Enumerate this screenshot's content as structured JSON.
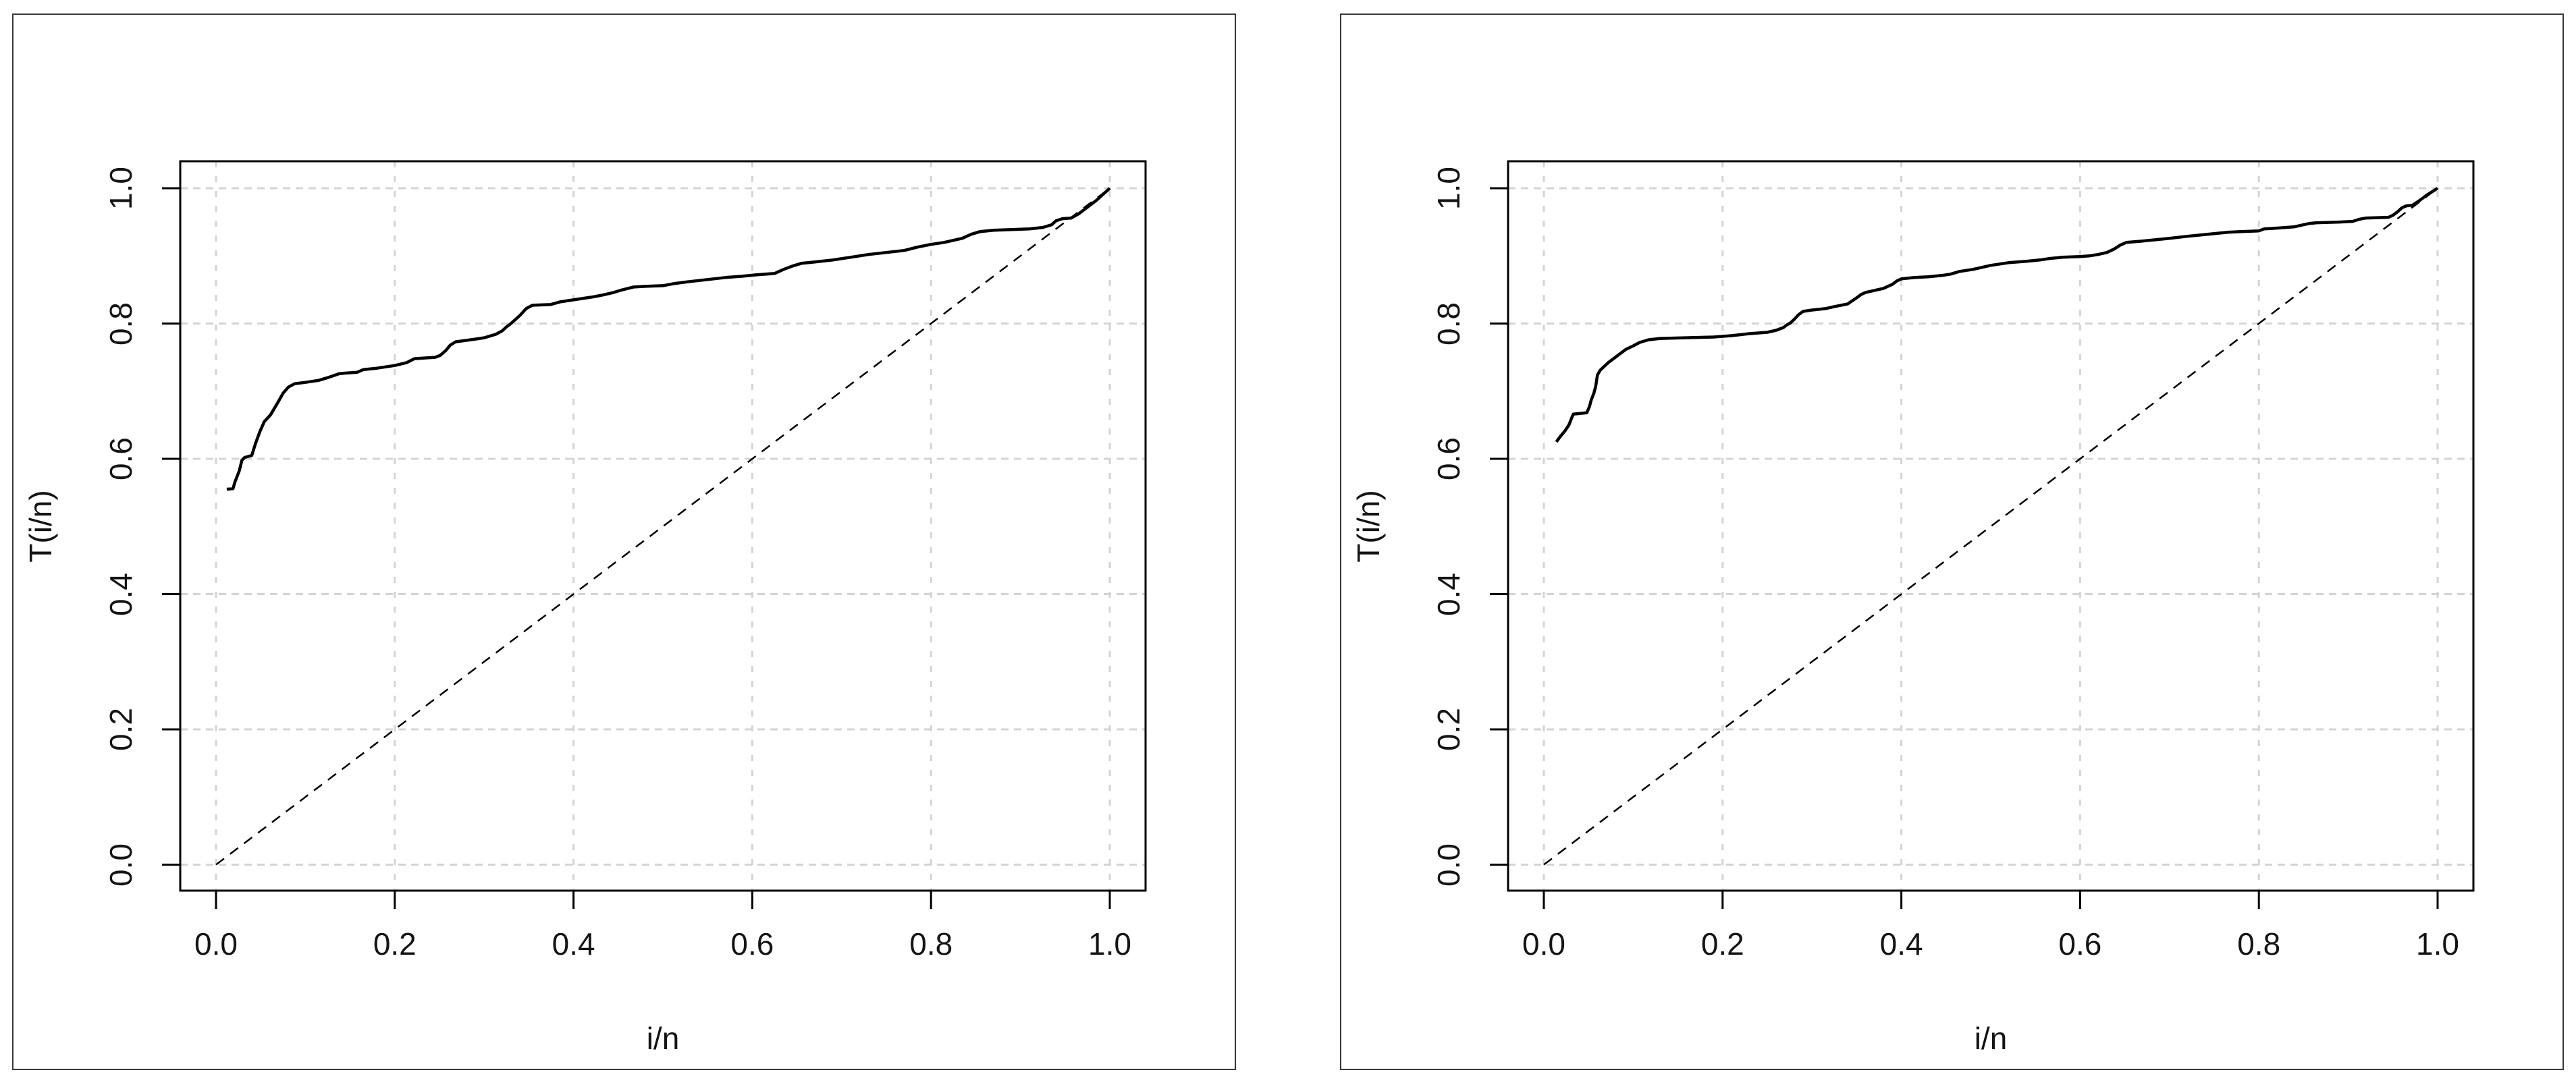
{
  "figure": {
    "background_color": "#ffffff",
    "panel_border_color": "#3a3a3a",
    "text_color": "#141414",
    "grid_color": "#d4d4d4",
    "curve_color": "#000000",
    "reference_line_color": "#000000",
    "box_color": "#000000"
  },
  "chart_data": [
    {
      "type": "line",
      "title": "",
      "xlabel": "i/n",
      "ylabel": "T(i/n)",
      "xlim": [
        0,
        1
      ],
      "ylim": [
        0,
        1
      ],
      "grid": true,
      "legend": "none",
      "xticks": {
        "values": [
          0.0,
          0.2,
          0.4,
          0.6,
          0.8,
          1.0
        ],
        "labels": [
          "0.0",
          "0.2",
          "0.4",
          "0.6",
          "0.8",
          "1.0"
        ]
      },
      "yticks": {
        "values": [
          0.0,
          0.2,
          0.4,
          0.6,
          0.8,
          1.0
        ],
        "labels": [
          "0.0",
          "0.2",
          "0.4",
          "0.6",
          "0.8",
          "1.0"
        ]
      },
      "series": [
        {
          "name": "ttt-curve",
          "style": "solid",
          "points": [
            [
              0.012,
              0.555
            ],
            [
              0.019,
              0.556
            ],
            [
              0.021,
              0.565
            ],
            [
              0.026,
              0.582
            ],
            [
              0.029,
              0.598
            ],
            [
              0.032,
              0.602
            ],
            [
              0.04,
              0.605
            ],
            [
              0.044,
              0.622
            ],
            [
              0.049,
              0.64
            ],
            [
              0.054,
              0.655
            ],
            [
              0.061,
              0.665
            ],
            [
              0.069,
              0.683
            ],
            [
              0.075,
              0.697
            ],
            [
              0.081,
              0.706
            ],
            [
              0.088,
              0.711
            ],
            [
              0.1,
              0.713
            ],
            [
              0.115,
              0.716
            ],
            [
              0.125,
              0.72
            ],
            [
              0.138,
              0.726
            ],
            [
              0.158,
              0.728
            ],
            [
              0.165,
              0.732
            ],
            [
              0.18,
              0.734
            ],
            [
              0.2,
              0.738
            ],
            [
              0.213,
              0.742
            ],
            [
              0.222,
              0.748
            ],
            [
              0.245,
              0.75
            ],
            [
              0.251,
              0.753
            ],
            [
              0.257,
              0.76
            ],
            [
              0.262,
              0.768
            ],
            [
              0.268,
              0.773
            ],
            [
              0.29,
              0.777
            ],
            [
              0.3,
              0.779
            ],
            [
              0.313,
              0.784
            ],
            [
              0.32,
              0.789
            ],
            [
              0.325,
              0.795
            ],
            [
              0.33,
              0.8
            ],
            [
              0.34,
              0.812
            ],
            [
              0.347,
              0.822
            ],
            [
              0.354,
              0.827
            ],
            [
              0.374,
              0.828
            ],
            [
              0.385,
              0.832
            ],
            [
              0.4,
              0.835
            ],
            [
              0.42,
              0.839
            ],
            [
              0.432,
              0.842
            ],
            [
              0.445,
              0.846
            ],
            [
              0.455,
              0.85
            ],
            [
              0.467,
              0.854
            ],
            [
              0.48,
              0.855
            ],
            [
              0.5,
              0.856
            ],
            [
              0.512,
              0.859
            ],
            [
              0.53,
              0.862
            ],
            [
              0.55,
              0.865
            ],
            [
              0.57,
              0.868
            ],
            [
              0.59,
              0.87
            ],
            [
              0.605,
              0.872
            ],
            [
              0.625,
              0.874
            ],
            [
              0.635,
              0.88
            ],
            [
              0.645,
              0.885
            ],
            [
              0.655,
              0.889
            ],
            [
              0.67,
              0.891
            ],
            [
              0.69,
              0.894
            ],
            [
              0.71,
              0.898
            ],
            [
              0.73,
              0.902
            ],
            [
              0.75,
              0.905
            ],
            [
              0.77,
              0.908
            ],
            [
              0.785,
              0.913
            ],
            [
              0.8,
              0.917
            ],
            [
              0.815,
              0.92
            ],
            [
              0.825,
              0.923
            ],
            [
              0.835,
              0.926
            ],
            [
              0.845,
              0.932
            ],
            [
              0.855,
              0.936
            ],
            [
              0.87,
              0.938
            ],
            [
              0.89,
              0.939
            ],
            [
              0.91,
              0.94
            ],
            [
              0.925,
              0.942
            ],
            [
              0.935,
              0.946
            ],
            [
              0.94,
              0.952
            ],
            [
              0.947,
              0.955
            ],
            [
              0.957,
              0.956
            ],
            [
              0.965,
              0.962
            ],
            [
              0.975,
              0.972
            ],
            [
              0.985,
              0.982
            ],
            [
              1.0,
              1.0
            ]
          ]
        },
        {
          "name": "diagonal-reference",
          "style": "dashed",
          "points": [
            [
              0,
              0
            ],
            [
              1,
              1
            ]
          ]
        }
      ]
    },
    {
      "type": "line",
      "title": "",
      "xlabel": "i/n",
      "ylabel": "T(i/n)",
      "xlim": [
        0,
        1
      ],
      "ylim": [
        0,
        1
      ],
      "grid": true,
      "legend": "none",
      "xticks": {
        "values": [
          0.0,
          0.2,
          0.4,
          0.6,
          0.8,
          1.0
        ],
        "labels": [
          "0.0",
          "0.2",
          "0.4",
          "0.6",
          "0.8",
          "1.0"
        ]
      },
      "yticks": {
        "values": [
          0.0,
          0.2,
          0.4,
          0.6,
          0.8,
          1.0
        ],
        "labels": [
          "0.0",
          "0.2",
          "0.4",
          "0.6",
          "0.8",
          "1.0"
        ]
      },
      "series": [
        {
          "name": "ttt-curve",
          "style": "solid",
          "points": [
            [
              0.014,
              0.625
            ],
            [
              0.019,
              0.634
            ],
            [
              0.024,
              0.642
            ],
            [
              0.028,
              0.65
            ],
            [
              0.031,
              0.66
            ],
            [
              0.033,
              0.666
            ],
            [
              0.048,
              0.668
            ],
            [
              0.051,
              0.677
            ],
            [
              0.053,
              0.687
            ],
            [
              0.056,
              0.697
            ],
            [
              0.058,
              0.707
            ],
            [
              0.06,
              0.724
            ],
            [
              0.063,
              0.731
            ],
            [
              0.067,
              0.736
            ],
            [
              0.072,
              0.742
            ],
            [
              0.077,
              0.747
            ],
            [
              0.085,
              0.755
            ],
            [
              0.092,
              0.762
            ],
            [
              0.1,
              0.767
            ],
            [
              0.107,
              0.772
            ],
            [
              0.117,
              0.776
            ],
            [
              0.13,
              0.778
            ],
            [
              0.19,
              0.78
            ],
            [
              0.21,
              0.782
            ],
            [
              0.23,
              0.785
            ],
            [
              0.25,
              0.787
            ],
            [
              0.26,
              0.79
            ],
            [
              0.268,
              0.794
            ],
            [
              0.272,
              0.798
            ],
            [
              0.276,
              0.801
            ],
            [
              0.28,
              0.806
            ],
            [
              0.285,
              0.813
            ],
            [
              0.29,
              0.818
            ],
            [
              0.3,
              0.82
            ],
            [
              0.315,
              0.822
            ],
            [
              0.325,
              0.825
            ],
            [
              0.34,
              0.829
            ],
            [
              0.35,
              0.838
            ],
            [
              0.355,
              0.843
            ],
            [
              0.36,
              0.846
            ],
            [
              0.37,
              0.849
            ],
            [
              0.38,
              0.852
            ],
            [
              0.39,
              0.858
            ],
            [
              0.395,
              0.863
            ],
            [
              0.4,
              0.866
            ],
            [
              0.415,
              0.868
            ],
            [
              0.43,
              0.869
            ],
            [
              0.445,
              0.871
            ],
            [
              0.455,
              0.873
            ],
            [
              0.465,
              0.877
            ],
            [
              0.48,
              0.88
            ],
            [
              0.49,
              0.883
            ],
            [
              0.5,
              0.886
            ],
            [
              0.52,
              0.89
            ],
            [
              0.54,
              0.892
            ],
            [
              0.555,
              0.894
            ],
            [
              0.565,
              0.896
            ],
            [
              0.58,
              0.898
            ],
            [
              0.6,
              0.899
            ],
            [
              0.61,
              0.9
            ],
            [
              0.62,
              0.902
            ],
            [
              0.63,
              0.905
            ],
            [
              0.638,
              0.91
            ],
            [
              0.645,
              0.916
            ],
            [
              0.652,
              0.92
            ],
            [
              0.67,
              0.922
            ],
            [
              0.685,
              0.924
            ],
            [
              0.7,
              0.926
            ],
            [
              0.72,
              0.929
            ],
            [
              0.735,
              0.931
            ],
            [
              0.75,
              0.933
            ],
            [
              0.765,
              0.935
            ],
            [
              0.78,
              0.936
            ],
            [
              0.8,
              0.937
            ],
            [
              0.806,
              0.94
            ],
            [
              0.82,
              0.941
            ],
            [
              0.84,
              0.943
            ],
            [
              0.85,
              0.946
            ],
            [
              0.857,
              0.948
            ],
            [
              0.865,
              0.949
            ],
            [
              0.89,
              0.95
            ],
            [
              0.905,
              0.951
            ],
            [
              0.912,
              0.954
            ],
            [
              0.92,
              0.956
            ],
            [
              0.945,
              0.957
            ],
            [
              0.95,
              0.96
            ],
            [
              0.955,
              0.965
            ],
            [
              0.96,
              0.971
            ],
            [
              0.965,
              0.974
            ],
            [
              0.972,
              0.975
            ],
            [
              0.98,
              0.982
            ],
            [
              0.988,
              0.99
            ],
            [
              1.0,
              1.0
            ]
          ]
        },
        {
          "name": "diagonal-reference",
          "style": "dashed",
          "points": [
            [
              0,
              0
            ],
            [
              1,
              1
            ]
          ]
        }
      ]
    }
  ]
}
